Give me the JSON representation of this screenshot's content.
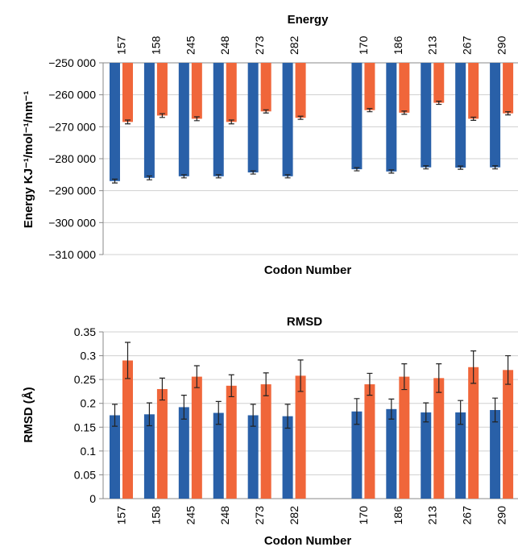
{
  "chart_data": [
    {
      "type": "bar",
      "title": "Energy",
      "xlabel": "Codon Number",
      "ylabel": "Energy KJ⁻¹/mol⁻¹/nm⁻¹",
      "ylim": [
        -310000,
        -250000
      ],
      "y_ticks": [
        -250000,
        -260000,
        -270000,
        -280000,
        -290000,
        -300000,
        -310000
      ],
      "y_tick_labels": [
        "−250 000",
        "−260 000",
        "−270 000",
        "−280 000",
        "−290 000",
        "−300 000",
        "−310 000"
      ],
      "x_axis_position": "top",
      "grid": true,
      "categories": [
        "157",
        "158",
        "245",
        "248",
        "273",
        "282",
        "",
        "170",
        "186",
        "213",
        "267",
        "290"
      ],
      "series": [
        {
          "color": "#2960a8",
          "values": [
            -287000,
            -286000,
            -285500,
            -285500,
            -284300,
            -285500,
            null,
            -283300,
            -284000,
            -282700,
            -282800,
            -282700
          ],
          "errors": [
            600,
            600,
            500,
            500,
            500,
            500,
            null,
            500,
            500,
            500,
            500,
            500
          ]
        },
        {
          "color": "#f0663a",
          "values": [
            -268500,
            -266500,
            -267500,
            -268500,
            -265200,
            -267200,
            null,
            -264800,
            -265600,
            -262500,
            -267500,
            -265800
          ],
          "errors": [
            600,
            600,
            600,
            600,
            500,
            500,
            null,
            500,
            500,
            500,
            500,
            500
          ]
        }
      ]
    },
    {
      "type": "bar",
      "title": "RMSD",
      "xlabel": "Codon Number",
      "ylabel": "RMSD (Å)",
      "ylim": [
        0,
        0.35
      ],
      "y_ticks": [
        0.35,
        0.3,
        0.25,
        0.2,
        0.15,
        0.1,
        0.05,
        0
      ],
      "y_tick_labels": [
        "0.35",
        "0.3",
        "0.25",
        "0.2",
        "0.15",
        "0.1",
        "0.05",
        "0"
      ],
      "x_axis_position": "bottom",
      "grid": true,
      "categories": [
        "157",
        "158",
        "245",
        "248",
        "273",
        "282",
        "",
        "170",
        "186",
        "213",
        "267",
        "290"
      ],
      "series": [
        {
          "color": "#2960a8",
          "values": [
            0.175,
            0.177,
            0.192,
            0.18,
            0.175,
            0.173,
            null,
            0.183,
            0.188,
            0.181,
            0.181,
            0.186
          ],
          "errors": [
            0.023,
            0.024,
            0.025,
            0.024,
            0.023,
            0.025,
            null,
            0.027,
            0.021,
            0.02,
            0.025,
            0.025
          ]
        },
        {
          "color": "#f0663a",
          "values": [
            0.29,
            0.23,
            0.256,
            0.237,
            0.24,
            0.258,
            null,
            0.24,
            0.256,
            0.253,
            0.276,
            0.27
          ],
          "errors": [
            0.038,
            0.023,
            0.023,
            0.023,
            0.024,
            0.033,
            null,
            0.023,
            0.027,
            0.03,
            0.034,
            0.03
          ]
        }
      ]
    }
  ]
}
